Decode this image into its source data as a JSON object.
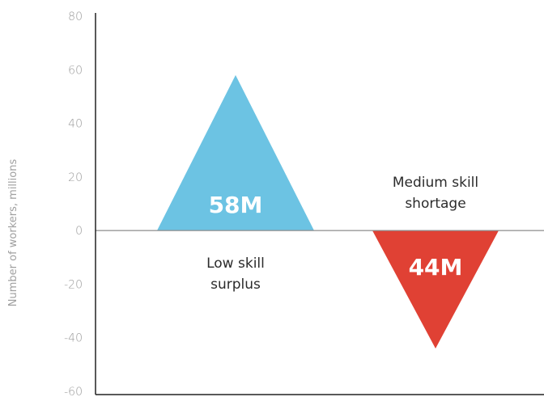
{
  "chart_data": {
    "type": "area",
    "ylabel": "Number of workers, millions",
    "ylim": [
      -60,
      80
    ],
    "yticks": [
      80,
      60,
      40,
      20,
      0,
      -20,
      -40,
      -60
    ],
    "grid": false,
    "colors": {
      "surplus": "#6cc3e3",
      "shortage": "#e04134",
      "axis": "#222222",
      "zero_line": "#8c8c8c"
    },
    "shapes": [
      {
        "name": "Low skill surplus",
        "kind": "surplus",
        "value": 58,
        "label": "58M",
        "annotation_lines": [
          "Low skill",
          "surplus"
        ]
      },
      {
        "name": "Medium skill shortage",
        "kind": "shortage",
        "value": -44,
        "label": "44M",
        "annotation_lines": [
          "Medium skill",
          "shortage"
        ]
      }
    ]
  }
}
